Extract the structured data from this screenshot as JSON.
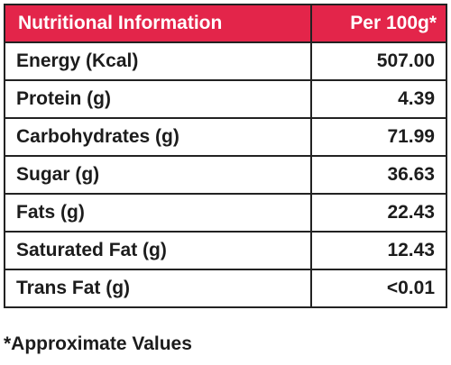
{
  "table": {
    "header": {
      "name": "Nutritional Information",
      "value": "Per 100g*"
    },
    "rows": [
      {
        "name": "Energy (Kcal)",
        "value": "507.00"
      },
      {
        "name": "Protein (g)",
        "value": "4.39"
      },
      {
        "name": "Carbohydrates (g)",
        "value": "71.99"
      },
      {
        "name": "Sugar (g)",
        "value": "36.63"
      },
      {
        "name": "Fats (g)",
        "value": "22.43"
      },
      {
        "name": "Saturated Fat (g)",
        "value": "12.43"
      },
      {
        "name": "Trans Fat (g)",
        "value": "<0.01"
      }
    ]
  },
  "footnote": "*Approximate Values",
  "colors": {
    "header_background": "#e3254a",
    "header_text": "#ffffff",
    "border": "#222222"
  }
}
